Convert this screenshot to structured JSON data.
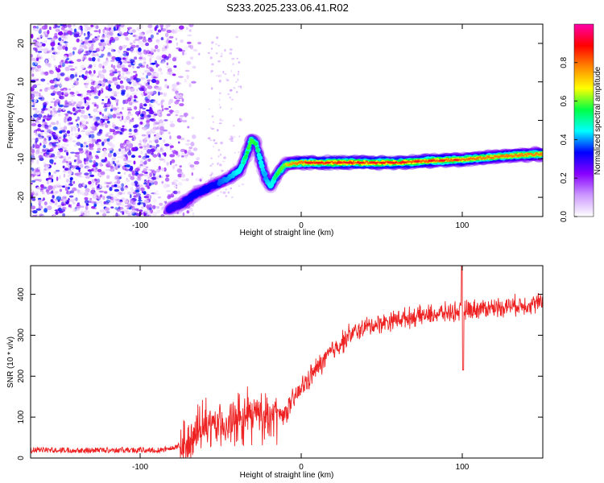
{
  "title": "S233.2025.233.06.41.R02",
  "chart_data": [
    {
      "type": "heatmap",
      "xlabel": "Height of straight line (km)",
      "ylabel": "Frequency (Hz)",
      "xlim": [
        -168,
        150
      ],
      "ylim": [
        -25,
        25
      ],
      "x_ticks": [
        -100,
        0,
        100
      ],
      "y_ticks": [
        -20,
        -10,
        0,
        10,
        20
      ],
      "grid": false,
      "colorbar": {
        "label": "Normalized spectral amplitude",
        "range": [
          0,
          1
        ],
        "ticks": [
          0.0,
          0.2,
          0.4,
          0.6,
          0.8
        ],
        "colors": [
          "#ffffff",
          "#cc99ff",
          "#8800ff",
          "#0000ff",
          "#00ffff",
          "#00ff44",
          "#ffff00",
          "#ff8800",
          "#ff0000",
          "#ff00aa"
        ]
      },
      "ridge": {
        "x": [
          -82,
          -75,
          -65,
          -55,
          -45,
          -38,
          -34,
          -31,
          -28,
          -25,
          -22,
          -19,
          -15,
          -10,
          0,
          20,
          60,
          80,
          100,
          120,
          135,
          150
        ],
        "y": [
          -23,
          -22,
          -19,
          -17,
          -15,
          -13,
          -9,
          -5,
          -6,
          -11,
          -15,
          -17,
          -14,
          -11.5,
          -11,
          -11,
          -11,
          -10.5,
          -10.2,
          -9.5,
          -9,
          -8.8
        ],
        "amplitude": [
          0.3,
          0.3,
          0.35,
          0.35,
          0.4,
          0.45,
          0.55,
          0.6,
          0.55,
          0.45,
          0.4,
          0.45,
          0.55,
          0.7,
          0.9,
          1.0,
          1.0,
          0.95,
          0.9,
          0.85,
          0.85,
          0.8
        ]
      },
      "noise_region": {
        "x": [
          -168,
          -70
        ],
        "y": [
          -25,
          25
        ]
      }
    },
    {
      "type": "line",
      "xlabel": "Height of straight line (km)",
      "ylabel": "SNR (10 * v/v)",
      "xlim": [
        -168,
        150
      ],
      "ylim": [
        0,
        470
      ],
      "x_ticks": [
        -100,
        0,
        100
      ],
      "y_ticks": [
        0,
        100,
        200,
        300,
        400
      ],
      "grid": false,
      "series": [
        {
          "color": "#ee2222",
          "x": [
            -168,
            -150,
            -130,
            -110,
            -90,
            -80,
            -70,
            -60,
            -50,
            -40,
            -30,
            -20,
            -10,
            0,
            10,
            20,
            30,
            40,
            50,
            60,
            70,
            80,
            90,
            100,
            110,
            120,
            130,
            140,
            150
          ],
          "values": [
            18,
            18,
            18,
            18,
            18,
            22,
            40,
            70,
            80,
            90,
            110,
            100,
            110,
            170,
            220,
            265,
            300,
            320,
            330,
            340,
            345,
            350,
            355,
            360,
            365,
            368,
            372,
            375,
            380
          ]
        }
      ]
    }
  ]
}
